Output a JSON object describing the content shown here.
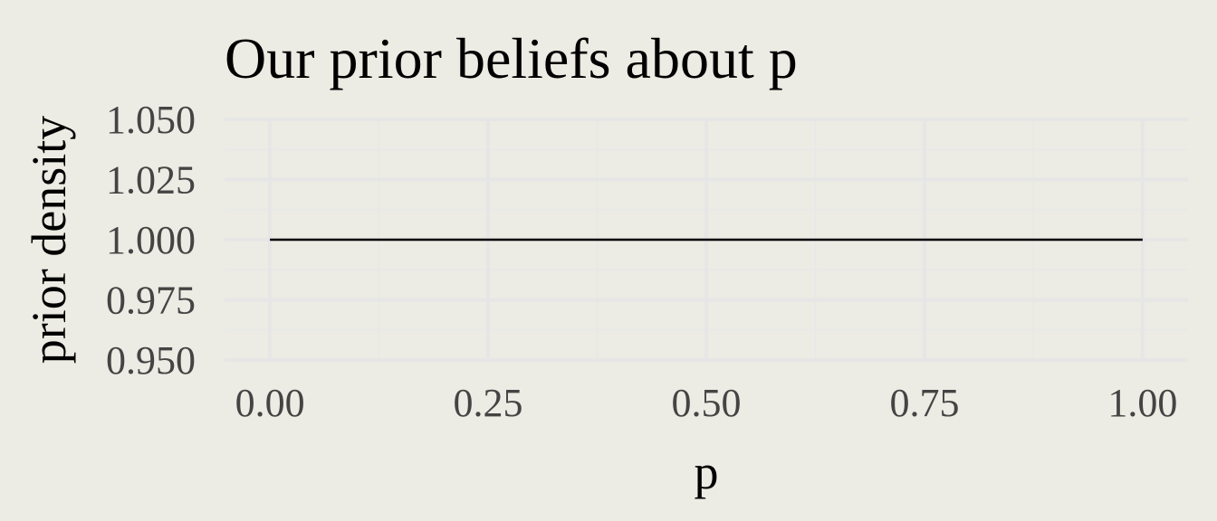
{
  "chart_data": {
    "type": "line",
    "title": "Our prior beliefs about p",
    "xlabel": "p",
    "ylabel": "prior density",
    "xlim": [
      -0.052,
      1.052
    ],
    "ylim": [
      0.95,
      1.05
    ],
    "x_ticks": [
      0.0,
      0.25,
      0.5,
      0.75,
      1.0
    ],
    "x_tick_labels": [
      "0.00",
      "0.25",
      "0.50",
      "0.75",
      "1.00"
    ],
    "y_ticks": [
      0.95,
      0.975,
      1.0,
      1.025,
      1.05
    ],
    "y_tick_labels": [
      "0.950",
      "0.975",
      "1.000",
      "1.025",
      "1.050"
    ],
    "grid": true,
    "legend": "none",
    "series": [
      {
        "x": [
          0.0,
          1.0
        ],
        "y": [
          1.0,
          1.0
        ]
      }
    ],
    "colors": {
      "background": "#ecece4",
      "line": "#000000",
      "grid": "#e6e6e6",
      "tick_text": "#444444"
    }
  }
}
